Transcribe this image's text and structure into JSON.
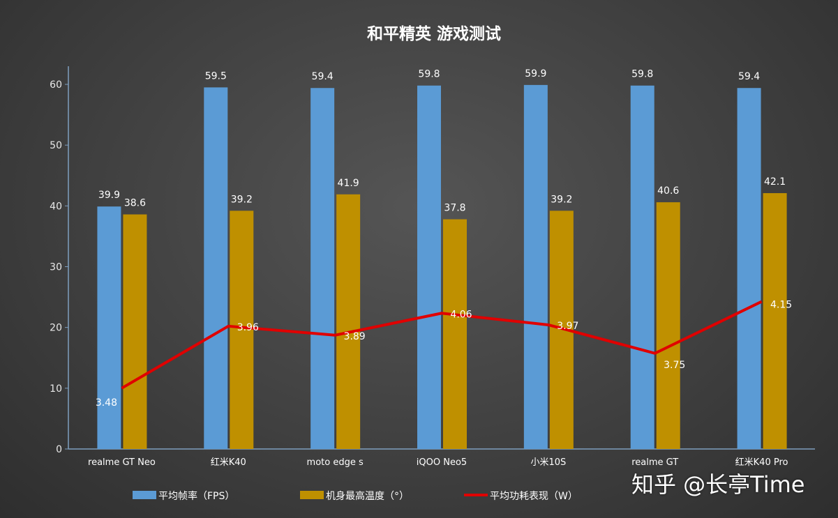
{
  "chart_data": {
    "type": "bar",
    "title": "和平精英  游戏测试",
    "xlabel": "",
    "ylabel": "",
    "ylim": [
      0,
      60
    ],
    "yticks": [
      "0",
      "10",
      "20",
      "30",
      "40",
      "50",
      "60"
    ],
    "grid": false,
    "legend_position": "bottom",
    "categories": [
      "realme GT Neo",
      "红米K40",
      "moto edge s",
      "iQOO Neo5",
      "小米10S",
      "realme GT",
      "红米K40 Pro"
    ],
    "series": [
      {
        "name": "平均帧率（FPS）",
        "kind": "bar",
        "color": "#5b9bd5",
        "values": [
          39.9,
          59.5,
          59.4,
          59.8,
          59.9,
          59.8,
          59.4
        ],
        "labels": [
          "39.9",
          "59.5",
          "59.4",
          "59.8",
          "59.9",
          "59.8",
          "59.4"
        ]
      },
      {
        "name": "机身最高温度（°）",
        "kind": "bar",
        "color": "#bf9000",
        "values": [
          38.6,
          39.2,
          41.9,
          37.8,
          39.2,
          40.6,
          42.1
        ],
        "labels": [
          "38.6",
          "39.2",
          "41.9",
          "37.8",
          "39.2",
          "40.6",
          "42.1"
        ]
      },
      {
        "name": "平均功耗表现（W）",
        "kind": "line",
        "color": "#e00000",
        "secondary_axis": true,
        "secondary_ylim": [
          3.01,
          5.83
        ],
        "values": [
          3.48,
          3.96,
          3.89,
          4.06,
          3.97,
          3.75,
          4.15
        ],
        "labels": [
          "3.48",
          "3.96",
          "3.89",
          "4.06",
          "3.97",
          "3.75",
          "4.15"
        ]
      }
    ]
  },
  "watermark": "知乎 @长亭Time"
}
